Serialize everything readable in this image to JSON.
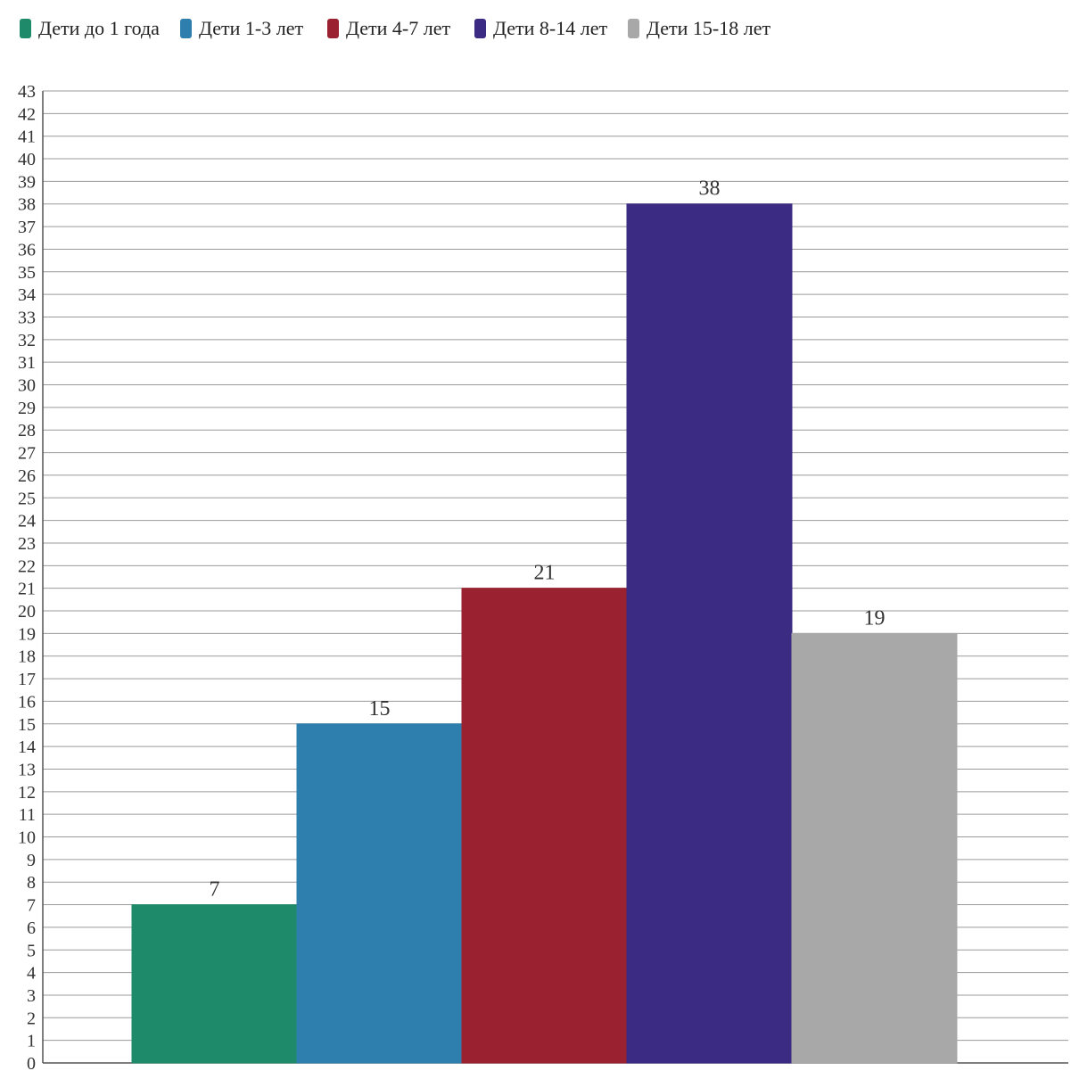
{
  "chart_data": {
    "type": "bar",
    "title": "",
    "xlabel": "",
    "ylabel": "",
    "ylim": [
      0,
      43
    ],
    "ytick_step": 1,
    "grid": true,
    "legend_position": "top",
    "categories": [
      "Дети до 1 года",
      "Дети 1-3 лет",
      "Дети 4-7 лет",
      "Дети 8-14 лет",
      "Дети 15-18 лет"
    ],
    "values": [
      7,
      15,
      21,
      38,
      19
    ],
    "data_labels": [
      "7",
      "15",
      "21",
      "38",
      "19"
    ],
    "colors": [
      "#1f8a6a",
      "#2f7fae",
      "#9a2230",
      "#3b2b82",
      "#a8a8a8"
    ]
  }
}
